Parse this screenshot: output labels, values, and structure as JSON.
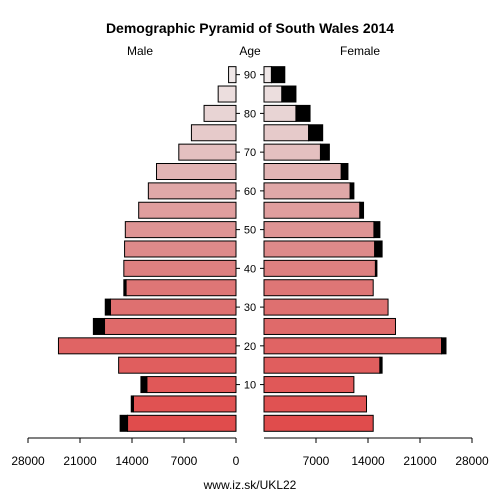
{
  "chart_data": {
    "type": "bar",
    "title": "Demographic Pyramid of South Wales 2014",
    "left_label": "Male",
    "center_label": "Age",
    "right_label": "Female",
    "footer": "www.iz.sk/UKL22",
    "age_ticks": [
      "10",
      "20",
      "30",
      "40",
      "50",
      "60",
      "70",
      "80",
      "90"
    ],
    "x_ticks": [
      "28000",
      "21000",
      "14000",
      "7000",
      "0",
      "7000",
      "14000",
      "21000",
      "28000"
    ],
    "xlim": [
      0,
      28000
    ],
    "bar_edge_color": "#000000",
    "extra_color": "#000000",
    "groups": [
      {
        "age": "0-4",
        "male": 14600,
        "male_extra": 1000,
        "female": 14700,
        "female_extra": 0,
        "color": "#e04c4c"
      },
      {
        "age": "5-9",
        "male": 13800,
        "male_extra": 300,
        "female": 13800,
        "female_extra": 0,
        "color": "#e05252"
      },
      {
        "age": "10-14",
        "male": 12000,
        "male_extra": 800,
        "female": 12100,
        "female_extra": 0,
        "color": "#e05858"
      },
      {
        "age": "15-19",
        "male": 15800,
        "male_extra": 0,
        "female": 15600,
        "female_extra": 300,
        "color": "#e05e5e"
      },
      {
        "age": "20-24",
        "male": 23900,
        "male_extra": 0,
        "female": 23900,
        "female_extra": 600,
        "color": "#e06464"
      },
      {
        "age": "25-29",
        "male": 17700,
        "male_extra": 1500,
        "female": 17700,
        "female_extra": 0,
        "color": "#df6a6a"
      },
      {
        "age": "30-34",
        "male": 16900,
        "male_extra": 700,
        "female": 16700,
        "female_extra": 0,
        "color": "#de7070"
      },
      {
        "age": "35-39",
        "male": 14800,
        "male_extra": 300,
        "female": 14700,
        "female_extra": 0,
        "color": "#de7676"
      },
      {
        "age": "40-44",
        "male": 15100,
        "male_extra": 0,
        "female": 15000,
        "female_extra": 200,
        "color": "#dd8080"
      },
      {
        "age": "45-49",
        "male": 15000,
        "male_extra": 0,
        "female": 14900,
        "female_extra": 1000,
        "color": "#de8a8a"
      },
      {
        "age": "50-54",
        "male": 14900,
        "male_extra": 0,
        "female": 14800,
        "female_extra": 800,
        "color": "#de9494"
      },
      {
        "age": "55-59",
        "male": 13100,
        "male_extra": 0,
        "female": 12900,
        "female_extra": 500,
        "color": "#e09e9e"
      },
      {
        "age": "60-64",
        "male": 11800,
        "male_extra": 0,
        "female": 11600,
        "female_extra": 500,
        "color": "#e0a8a8"
      },
      {
        "age": "65-69",
        "male": 10700,
        "male_extra": 0,
        "female": 10400,
        "female_extra": 900,
        "color": "#e2b4b4"
      },
      {
        "age": "70-74",
        "male": 7700,
        "male_extra": 0,
        "female": 7600,
        "female_extra": 1200,
        "color": "#e4c0c0"
      },
      {
        "age": "75-79",
        "male": 6000,
        "male_extra": 0,
        "female": 6000,
        "female_extra": 1900,
        "color": "#e6caca"
      },
      {
        "age": "80-84",
        "male": 4300,
        "male_extra": 0,
        "female": 4300,
        "female_extra": 1900,
        "color": "#e8d4d4"
      },
      {
        "age": "85-89",
        "male": 2400,
        "male_extra": 0,
        "female": 2400,
        "female_extra": 1900,
        "color": "#ecdede"
      },
      {
        "age": "90+",
        "male": 1000,
        "male_extra": 0,
        "female": 1000,
        "female_extra": 1800,
        "color": "#f0e8e8"
      }
    ]
  }
}
